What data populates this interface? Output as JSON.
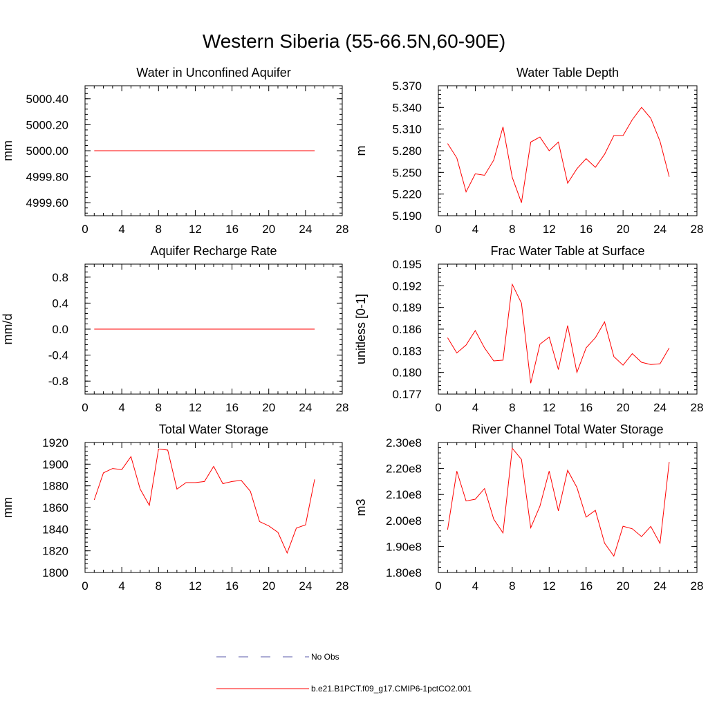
{
  "title": "Western Siberia (55-66.5N,60-90E)",
  "legend": [
    {
      "label": "No Obs",
      "color": "#5a5aa8",
      "dash": true
    },
    {
      "label": "b.e21.B1PCT.f09_g17.CMIP6-1pctCO2.001",
      "color": "#ff0000",
      "dash": false
    }
  ],
  "chart_data": [
    {
      "type": "line",
      "title": "Water in Unconfined Aquifer",
      "ylabel": "mm",
      "xlim": [
        0,
        28
      ],
      "ylim": [
        4999.5,
        5000.5
      ],
      "xticks": [
        0,
        4,
        8,
        12,
        16,
        20,
        24,
        28
      ],
      "yticks": [
        4999.6,
        4999.8,
        5000.0,
        5000.2,
        5000.4
      ],
      "ytick_labels": [
        "4999.60",
        "4999.80",
        "5000.00",
        "5000.20",
        "5000.40"
      ],
      "x": [
        1,
        2,
        3,
        4,
        5,
        6,
        7,
        8,
        9,
        10,
        11,
        12,
        13,
        14,
        15,
        16,
        17,
        18,
        19,
        20,
        21,
        22,
        23,
        24,
        25
      ],
      "values": [
        5000,
        5000,
        5000,
        5000,
        5000,
        5000,
        5000,
        5000,
        5000,
        5000,
        5000,
        5000,
        5000,
        5000,
        5000,
        5000,
        5000,
        5000,
        5000,
        5000,
        5000,
        5000,
        5000,
        5000,
        5000
      ]
    },
    {
      "type": "line",
      "title": "Water Table Depth",
      "ylabel": "m",
      "xlim": [
        0,
        28
      ],
      "ylim": [
        5.19,
        5.37
      ],
      "xticks": [
        0,
        4,
        8,
        12,
        16,
        20,
        24,
        28
      ],
      "yticks": [
        5.19,
        5.22,
        5.25,
        5.28,
        5.31,
        5.34,
        5.37
      ],
      "ytick_labels": [
        "5.190",
        "5.220",
        "5.250",
        "5.280",
        "5.310",
        "5.340",
        "5.370"
      ],
      "x": [
        1,
        2,
        3,
        4,
        5,
        6,
        7,
        8,
        9,
        10,
        11,
        12,
        13,
        14,
        15,
        16,
        17,
        18,
        19,
        20,
        21,
        22,
        23,
        24,
        25
      ],
      "values": [
        5.29,
        5.27,
        5.223,
        5.248,
        5.246,
        5.267,
        5.313,
        5.243,
        5.208,
        5.292,
        5.299,
        5.28,
        5.292,
        5.235,
        5.255,
        5.269,
        5.257,
        5.275,
        5.301,
        5.301,
        5.323,
        5.34,
        5.325,
        5.293,
        5.244
      ]
    },
    {
      "type": "line",
      "title": "Aquifer Recharge Rate",
      "ylabel": "mm/d",
      "xlim": [
        0,
        28
      ],
      "ylim": [
        -1.0,
        1.0
      ],
      "xticks": [
        0,
        4,
        8,
        12,
        16,
        20,
        24,
        28
      ],
      "yticks": [
        -0.8,
        -0.4,
        0.0,
        0.4,
        0.8
      ],
      "ytick_labels": [
        "-0.8",
        "-0.4",
        "0.0",
        "0.4",
        "0.8"
      ],
      "x": [
        1,
        2,
        3,
        4,
        5,
        6,
        7,
        8,
        9,
        10,
        11,
        12,
        13,
        14,
        15,
        16,
        17,
        18,
        19,
        20,
        21,
        22,
        23,
        24,
        25
      ],
      "values": [
        0,
        0,
        0,
        0,
        0,
        0,
        0,
        0,
        0,
        0,
        0,
        0,
        0,
        0,
        0,
        0,
        0,
        0,
        0,
        0,
        0,
        0,
        0,
        0,
        0
      ]
    },
    {
      "type": "line",
      "title": "Frac Water Table at Surface",
      "ylabel": "unitless [0-1]",
      "xlim": [
        0,
        28
      ],
      "ylim": [
        0.177,
        0.195
      ],
      "xticks": [
        0,
        4,
        8,
        12,
        16,
        20,
        24,
        28
      ],
      "yticks": [
        0.177,
        0.18,
        0.183,
        0.186,
        0.189,
        0.192,
        0.195
      ],
      "ytick_labels": [
        "0.177",
        "0.180",
        "0.183",
        "0.186",
        "0.189",
        "0.192",
        "0.195"
      ],
      "x": [
        1,
        2,
        3,
        4,
        5,
        6,
        7,
        8,
        9,
        10,
        11,
        12,
        13,
        14,
        15,
        16,
        17,
        18,
        19,
        20,
        21,
        22,
        23,
        24,
        25
      ],
      "values": [
        0.1848,
        0.1827,
        0.1838,
        0.1858,
        0.1834,
        0.1816,
        0.1817,
        0.1922,
        0.1896,
        0.1785,
        0.1839,
        0.1849,
        0.1804,
        0.1865,
        0.18,
        0.1834,
        0.1848,
        0.187,
        0.1822,
        0.181,
        0.1826,
        0.1814,
        0.1811,
        0.1812,
        0.1834
      ]
    },
    {
      "type": "line",
      "title": "Total Water Storage",
      "ylabel": "mm",
      "xlim": [
        0,
        28
      ],
      "ylim": [
        1800,
        1920
      ],
      "xticks": [
        0,
        4,
        8,
        12,
        16,
        20,
        24,
        28
      ],
      "yticks": [
        1800,
        1820,
        1840,
        1860,
        1880,
        1900,
        1920
      ],
      "ytick_labels": [
        "1800",
        "1820",
        "1840",
        "1860",
        "1880",
        "1900",
        "1920"
      ],
      "x": [
        1,
        2,
        3,
        4,
        5,
        6,
        7,
        8,
        9,
        10,
        11,
        12,
        13,
        14,
        15,
        16,
        17,
        18,
        19,
        20,
        21,
        22,
        23,
        24,
        25
      ],
      "values": [
        1867,
        1892,
        1896,
        1895,
        1907,
        1877,
        1862,
        1914,
        1913,
        1877,
        1883,
        1883,
        1884,
        1898,
        1882,
        1884,
        1885,
        1875,
        1847,
        1843,
        1837,
        1818,
        1841,
        1844,
        1886
      ]
    },
    {
      "type": "line",
      "title": "River Channel Total Water Storage",
      "ylabel": "m3",
      "xlim": [
        0,
        28
      ],
      "ylim": [
        180000000,
        230000000
      ],
      "xticks": [
        0,
        4,
        8,
        12,
        16,
        20,
        24,
        28
      ],
      "yticks": [
        180000000,
        190000000,
        200000000,
        210000000,
        220000000,
        230000000
      ],
      "ytick_labels": [
        "1.80e8",
        "1.90e8",
        "2.00e8",
        "2.10e8",
        "2.20e8",
        "2.30e8"
      ],
      "x": [
        1,
        2,
        3,
        4,
        5,
        6,
        7,
        8,
        9,
        10,
        11,
        12,
        13,
        14,
        15,
        16,
        17,
        18,
        19,
        20,
        21,
        22,
        23,
        24,
        25
      ],
      "values": [
        196500000,
        219000000,
        207500000,
        208200000,
        212300000,
        200500000,
        195200000,
        227800000,
        223500000,
        197200000,
        205500000,
        219000000,
        203700000,
        219300000,
        212700000,
        201300000,
        203900000,
        191300000,
        186300000,
        197800000,
        196800000,
        193800000,
        197700000,
        191200000,
        222500000
      ]
    }
  ]
}
